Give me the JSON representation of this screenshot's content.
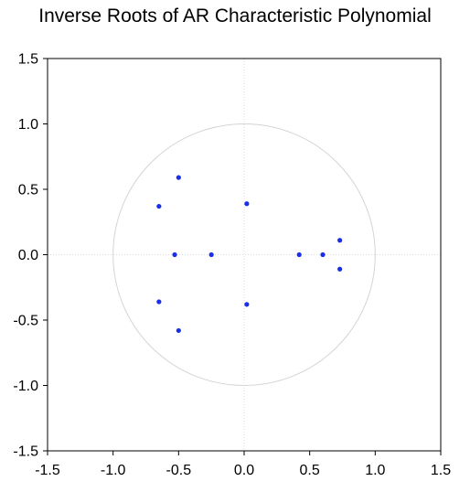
{
  "chart_data": {
    "type": "scatter",
    "title": "Inverse Roots of AR Characteristic Polynomial",
    "xlabel": "",
    "ylabel": "",
    "xlim": [
      -1.5,
      1.5
    ],
    "ylim": [
      -1.5,
      1.5
    ],
    "xticks": [
      "-1.5",
      "-1.0",
      "-0.5",
      "0.0",
      "0.5",
      "1.0",
      "1.5"
    ],
    "yticks": [
      "1.5",
      "1.0",
      "0.5",
      "0.0",
      "-0.5",
      "-1.0",
      "-1.5"
    ],
    "unit_circle_radius": 1.0,
    "grid": "zero lines only",
    "legend": "none",
    "point_color": "#1a2fe6",
    "circle_color": "#d4d4d4",
    "zero_line_color": "#dcdcdc",
    "series": [
      {
        "points": [
          {
            "x": -0.5,
            "y": 0.59
          },
          {
            "x": -0.65,
            "y": 0.37
          },
          {
            "x": 0.02,
            "y": 0.39
          },
          {
            "x": -0.53,
            "y": 0.0
          },
          {
            "x": -0.25,
            "y": 0.0
          },
          {
            "x": 0.42,
            "y": 0.0
          },
          {
            "x": 0.6,
            "y": 0.0
          },
          {
            "x": 0.73,
            "y": 0.11
          },
          {
            "x": 0.73,
            "y": -0.11
          },
          {
            "x": -0.65,
            "y": -0.36
          },
          {
            "x": 0.02,
            "y": -0.38
          },
          {
            "x": -0.5,
            "y": -0.58
          }
        ]
      }
    ]
  }
}
